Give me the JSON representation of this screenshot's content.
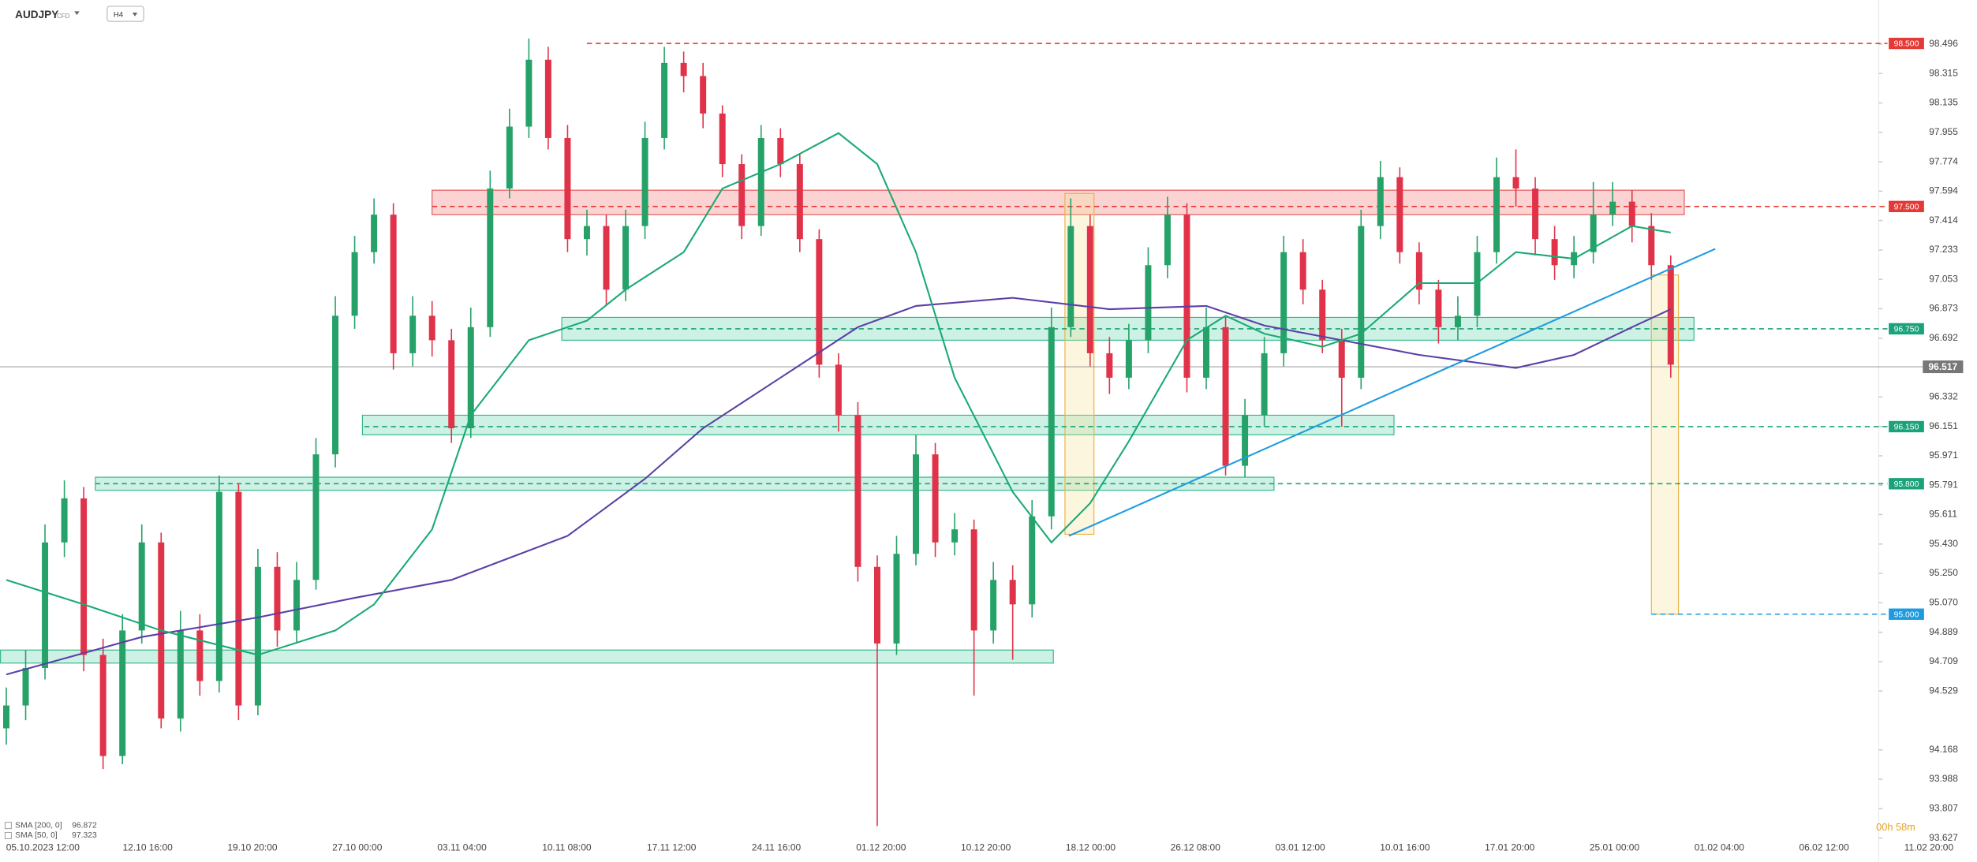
{
  "header": {
    "symbol": "AUDJPY",
    "kind": "CFD",
    "timeframe": "H4"
  },
  "chart_data": {
    "type": "candlestick",
    "ylim": [
      93.627,
      98.689
    ],
    "yticks": [
      98.496,
      98.315,
      98.135,
      97.955,
      97.774,
      97.594,
      97.414,
      97.233,
      97.053,
      96.873,
      96.692,
      96.332,
      96.151,
      95.971,
      95.791,
      95.611,
      {
        "value": 95.43,
        "label": "95.430"
      },
      {
        "value": 95.25,
        "label": "95.250"
      },
      {
        "value": 95.07,
        "label": "95.070"
      },
      94.889,
      94.709,
      94.529,
      94.168,
      93.988,
      93.807,
      93.627
    ],
    "x_labels": [
      "05.10.2023 12:00",
      "12.10 16:00",
      "19.10 20:00",
      "27.10 00:00",
      "03.11 04:00",
      "10.11 08:00",
      "17.11 12:00",
      "24.11 16:00",
      "01.12 20:00",
      "10.12 20:00",
      "18.12 00:00",
      "26.12 08:00",
      "03.01 12:00",
      "10.01 16:00",
      "17.01 20:00",
      "25.01 00:00",
      "01.02 04:00",
      "06.02 12:00",
      "11.02 20:00"
    ],
    "up_color": "#26a269",
    "down_color": "#e0334a",
    "open": [
      94.3,
      94.44,
      94.67,
      95.44,
      95.71,
      94.75,
      94.13,
      94.9,
      95.44,
      94.36,
      94.9,
      94.59,
      95.75,
      94.44,
      95.29,
      94.9,
      95.21,
      95.98,
      96.83,
      97.22,
      97.45,
      96.6,
      96.83,
      96.68,
      96.14,
      96.76,
      97.61,
      97.99,
      98.4,
      97.92,
      97.3,
      97.38,
      96.99,
      97.38,
      97.92,
      98.38,
      98.3,
      98.07,
      97.76,
      97.38,
      97.92,
      97.76,
      97.3,
      96.53,
      96.22,
      95.29,
      94.82,
      95.37,
      95.98,
      95.44,
      95.52,
      94.9,
      95.21,
      95.06,
      95.6,
      96.76,
      97.38,
      96.6,
      96.45,
      96.68,
      97.14,
      97.45,
      96.45,
      96.76,
      95.91,
      96.22,
      96.6,
      97.22,
      96.99,
      96.68,
      96.45,
      97.38,
      97.68,
      97.22,
      96.99,
      96.76,
      96.83,
      97.22,
      97.68,
      97.61,
      97.3,
      97.14,
      97.22,
      97.45,
      97.53,
      97.38,
      97.14
    ],
    "high": [
      94.55,
      94.78,
      95.55,
      95.82,
      95.78,
      94.85,
      95.0,
      95.55,
      95.5,
      95.02,
      95.0,
      95.85,
      95.8,
      95.4,
      95.38,
      95.32,
      96.08,
      96.95,
      97.32,
      97.55,
      97.52,
      96.95,
      96.92,
      96.75,
      96.88,
      97.72,
      98.1,
      98.53,
      98.48,
      98.0,
      97.48,
      97.45,
      97.48,
      98.02,
      98.48,
      98.45,
      98.38,
      98.12,
      97.82,
      98.0,
      97.98,
      97.82,
      97.36,
      96.6,
      96.3,
      95.36,
      95.48,
      96.1,
      96.05,
      95.62,
      95.58,
      95.32,
      95.3,
      95.7,
      96.88,
      97.55,
      97.45,
      96.7,
      96.78,
      97.25,
      97.56,
      97.52,
      96.88,
      96.82,
      96.32,
      96.7,
      97.32,
      97.3,
      97.05,
      96.75,
      97.48,
      97.78,
      97.74,
      97.28,
      97.05,
      96.95,
      97.32,
      97.8,
      97.85,
      97.68,
      97.38,
      97.32,
      97.65,
      97.65,
      97.6,
      97.46,
      97.2
    ],
    "low": [
      94.2,
      94.35,
      94.6,
      95.35,
      94.65,
      94.05,
      94.08,
      94.82,
      94.3,
      94.28,
      94.5,
      94.52,
      94.35,
      94.38,
      94.8,
      94.82,
      95.15,
      95.9,
      96.75,
      97.15,
      96.5,
      96.52,
      96.58,
      96.05,
      96.08,
      96.7,
      97.55,
      97.92,
      97.85,
      97.22,
      97.2,
      96.9,
      96.92,
      97.3,
      97.85,
      98.2,
      97.98,
      97.68,
      97.3,
      97.32,
      97.68,
      97.22,
      96.45,
      96.12,
      95.2,
      93.7,
      94.75,
      95.3,
      95.35,
      95.36,
      94.5,
      94.82,
      94.72,
      94.98,
      95.52,
      96.7,
      96.52,
      96.35,
      96.38,
      96.6,
      97.06,
      96.36,
      96.38,
      95.85,
      95.84,
      96.15,
      96.52,
      96.9,
      96.6,
      96.15,
      96.38,
      97.3,
      97.15,
      96.9,
      96.66,
      96.68,
      96.76,
      97.15,
      97.5,
      97.2,
      97.05,
      97.06,
      97.15,
      97.38,
      97.28,
      97.05,
      96.45
    ],
    "close": [
      94.44,
      94.67,
      95.44,
      95.71,
      94.75,
      94.13,
      94.9,
      95.44,
      94.36,
      94.9,
      94.59,
      95.75,
      94.44,
      95.29,
      94.9,
      95.21,
      95.98,
      96.83,
      97.22,
      97.45,
      96.6,
      96.83,
      96.68,
      96.14,
      96.76,
      97.61,
      97.99,
      98.4,
      97.92,
      97.3,
      97.38,
      96.99,
      97.38,
      97.92,
      98.38,
      98.3,
      98.07,
      97.76,
      97.38,
      97.92,
      97.76,
      97.3,
      96.53,
      96.22,
      95.29,
      94.82,
      95.37,
      95.98,
      95.44,
      95.52,
      94.9,
      95.21,
      95.06,
      95.6,
      96.76,
      97.38,
      96.6,
      96.45,
      96.68,
      97.14,
      97.45,
      96.45,
      96.76,
      95.91,
      96.22,
      96.6,
      97.22,
      96.99,
      96.68,
      96.45,
      97.38,
      97.68,
      97.22,
      96.99,
      96.76,
      96.83,
      97.22,
      97.68,
      97.61,
      97.3,
      97.14,
      97.22,
      97.45,
      97.53,
      97.38,
      97.14,
      96.53
    ],
    "series": [
      {
        "name": "SMA [200, 0]",
        "last_value": 96.872,
        "color": "#5b3fa6",
        "x": [
          0,
          7,
          13,
          18,
          23,
          29,
          33,
          36,
          40,
          44,
          47,
          52,
          57,
          62,
          65,
          69,
          73,
          78,
          81,
          84,
          86
        ],
        "values": [
          94.63,
          94.86,
          94.98,
          95.1,
          95.21,
          95.48,
          95.83,
          96.14,
          96.45,
          96.76,
          96.89,
          96.94,
          96.87,
          96.89,
          96.77,
          96.68,
          96.59,
          96.51,
          96.59,
          96.76,
          96.87
        ]
      },
      {
        "name": "SMA [50, 0]",
        "last_value": 97.323,
        "color": "#1aaa73",
        "x": [
          0,
          4,
          8,
          13,
          17,
          19,
          22,
          24,
          27,
          30,
          32,
          35,
          37,
          40,
          43,
          45,
          47,
          49,
          52,
          54,
          56,
          58,
          61,
          63,
          65,
          68,
          70,
          73,
          76,
          78,
          81,
          84,
          86
        ],
        "values": [
          95.21,
          95.06,
          94.9,
          94.75,
          94.9,
          95.06,
          95.52,
          96.22,
          96.68,
          96.8,
          96.99,
          97.22,
          97.61,
          97.76,
          97.95,
          97.76,
          97.22,
          96.45,
          95.75,
          95.44,
          95.68,
          96.06,
          96.68,
          96.83,
          96.72,
          96.64,
          96.72,
          97.03,
          97.03,
          97.22,
          97.18,
          97.38,
          97.34
        ]
      }
    ],
    "levels": [
      {
        "value": 98.5,
        "label": "98.500",
        "color": "#e53935",
        "from": 30
      },
      {
        "value": 97.5,
        "label": "97.500",
        "color": "#e53935",
        "from": 22
      },
      {
        "value": 96.75,
        "label": "96.750",
        "color": "#1aa37a",
        "from": 29
      },
      {
        "value": 96.15,
        "label": "96.150",
        "color": "#1aa37a",
        "from": 18.5
      },
      {
        "value": 95.8,
        "label": "95.800",
        "color": "#1aa37a",
        "from": 4.6
      },
      {
        "value": 95.0,
        "label": "95.000",
        "color": "#1e9be0",
        "from": 85
      }
    ],
    "zones": [
      {
        "range": [
          97.45,
          97.6
        ],
        "from": 22,
        "to": 86.7,
        "fill": "rgba(240,80,80,0.25)",
        "stroke": "#e05050"
      },
      {
        "range": [
          96.68,
          96.82
        ],
        "from": 28.7,
        "to": 87.2,
        "fill": "rgba(60,200,150,0.25)",
        "stroke": "#2cb585"
      },
      {
        "range": [
          96.1,
          96.22
        ],
        "from": 18.4,
        "to": 71.7,
        "fill": "rgba(60,200,150,0.25)",
        "stroke": "#2cb585"
      },
      {
        "range": [
          95.76,
          95.84
        ],
        "from": 4.6,
        "to": 65.5,
        "fill": "rgba(60,200,150,0.25)",
        "stroke": "#2cb585"
      },
      {
        "range": [
          94.7,
          94.78
        ],
        "from": -0.3,
        "to": 54.1,
        "fill": "rgba(60,200,150,0.25)",
        "stroke": "#2cb585"
      },
      {
        "range": [
          95.49,
          97.58
        ],
        "from": 54.7,
        "to": 56.2,
        "fill": "rgba(250,225,150,0.3)",
        "stroke": "#e8b040"
      },
      {
        "range": [
          95.0,
          97.08
        ],
        "from": 85,
        "to": 86.4,
        "fill": "rgba(250,225,150,0.3)",
        "stroke": "#e8b040"
      }
    ],
    "trendline": {
      "from": [
        54.9,
        95.48
      ],
      "to": [
        88.3,
        97.24
      ],
      "color": "#1e9be0"
    },
    "last_price": 96.517,
    "countdown": "00h 58m"
  }
}
